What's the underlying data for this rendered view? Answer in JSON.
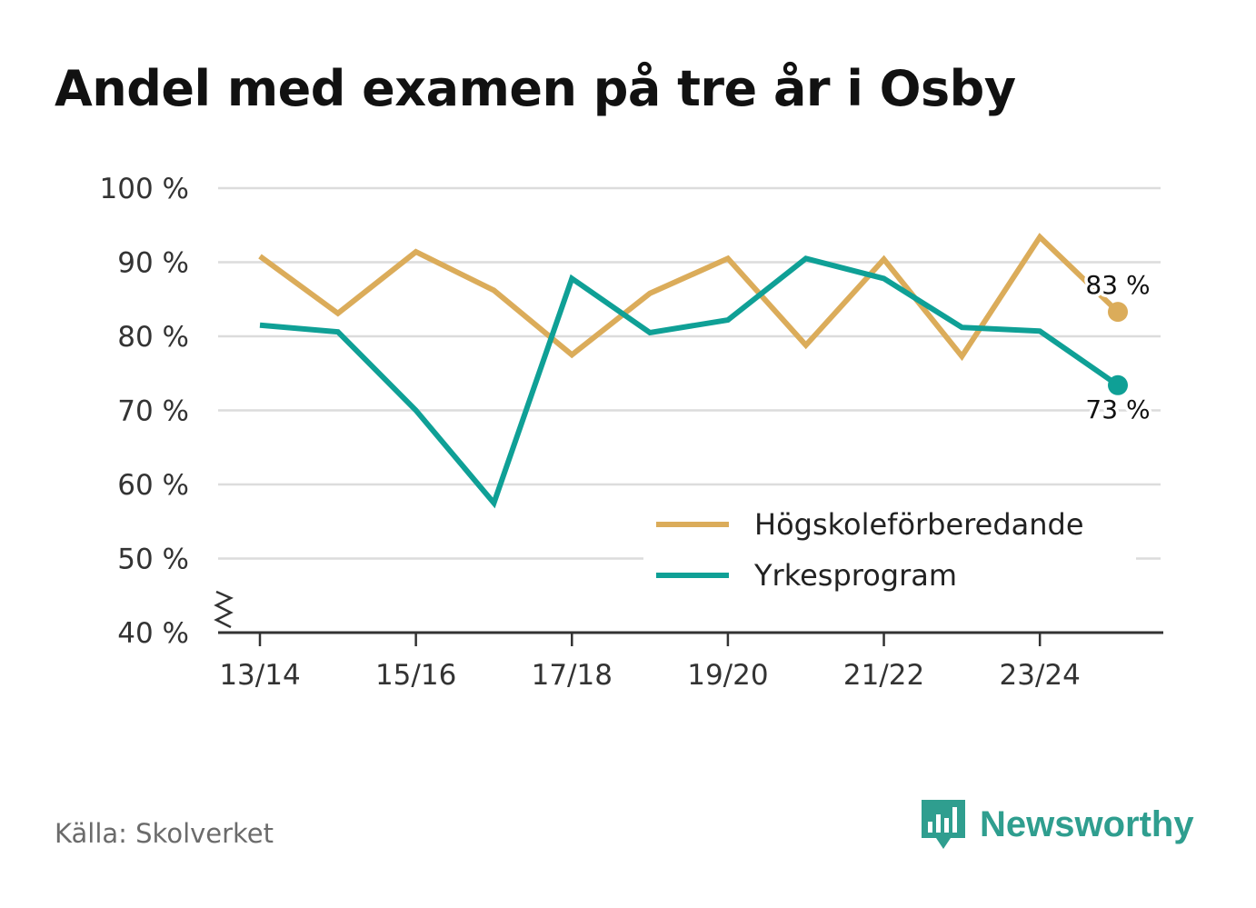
{
  "title": "Andel med examen på tre år i Osby",
  "source": "Källa: Skolverket",
  "brand": {
    "name": "Newsworthy",
    "icon": "newsworthy-logo-icon",
    "color": "#2f9e8f"
  },
  "chart_data": {
    "type": "line",
    "title": "Andel med examen på tre år i Osby",
    "xlabel": "",
    "ylabel": "",
    "x": [
      "13/14",
      "14/15",
      "15/16",
      "16/17",
      "17/18",
      "18/19",
      "19/20",
      "20/21",
      "21/22",
      "22/23",
      "23/24",
      "24/25"
    ],
    "x_tick_labels": [
      "13/14",
      "15/16",
      "17/18",
      "19/20",
      "21/22",
      "23/24"
    ],
    "y_ticks": [
      40,
      50,
      60,
      70,
      80,
      90,
      100
    ],
    "y_tick_labels": [
      "40 %",
      "50 %",
      "60 %",
      "70 %",
      "80 %",
      "90 %",
      "100 %"
    ],
    "ylim": [
      40,
      100
    ],
    "y_axis_break": true,
    "grid": true,
    "legend_position": "bottom-right",
    "series": [
      {
        "name": "Högskoleförberedande",
        "color": "#dbac5a",
        "values": [
          90.8,
          83.1,
          91.4,
          86.2,
          77.5,
          85.8,
          90.5,
          78.8,
          90.4,
          77.3,
          93.4,
          83.3
        ],
        "end_label": "83 %"
      },
      {
        "name": "Yrkesprogram",
        "color": "#0fa096",
        "values": [
          81.5,
          80.6,
          70.0,
          57.5,
          87.8,
          80.5,
          82.2,
          90.5,
          87.8,
          81.2,
          80.7,
          73.4
        ],
        "end_label": "73 %"
      }
    ]
  }
}
